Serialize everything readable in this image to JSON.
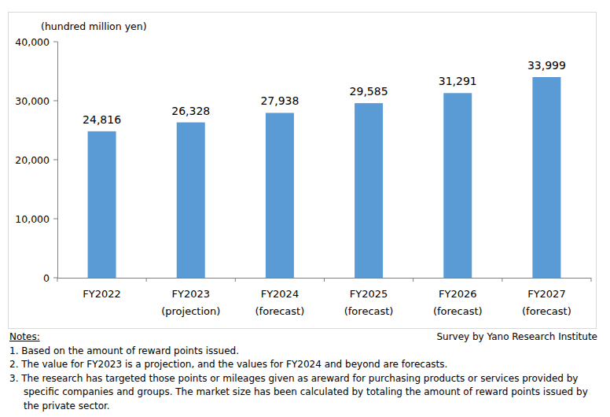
{
  "chart_data": {
    "type": "bar",
    "y_label": "(hundred million yen)",
    "categories": [
      "FY2022",
      "FY2023 (projection)",
      "FY2024 (forecast)",
      "FY2025 (forecast)",
      "FY2026 (forecast)",
      "FY2027 (forecast)"
    ],
    "values": [
      24816,
      26328,
      27938,
      29585,
      31291,
      33999
    ],
    "value_labels": [
      "24,816",
      "26,328",
      "27,938",
      "29,585",
      "31,291",
      "33,999"
    ],
    "color": "#5b9bd5",
    "ylim": [
      0,
      40000
    ],
    "yticks": [
      0,
      {
        "value": 10000,
        "label": "10,000"
      },
      {
        "value": 20000,
        "label": "20,000"
      },
      {
        "value": 30000,
        "label": "30,000"
      },
      {
        "value": 40000,
        "label": "40,000"
      }
    ],
    "grid": false,
    "data_labels": true,
    "notes_title": "Notes:",
    "notes": [
      "1. Based on the amount of reward points issued.",
      "2. The value for FY2023 is a projection, and the values for FY2024 and beyond are forecasts.",
      "3. The research has targeted those points or mileages given as areward for purchasing products or services provided by specific companies and groups. The market size has been calculated by totaling the amount of reward points issued by the private sector."
    ],
    "source": "Survey by Yano Research Institute"
  }
}
